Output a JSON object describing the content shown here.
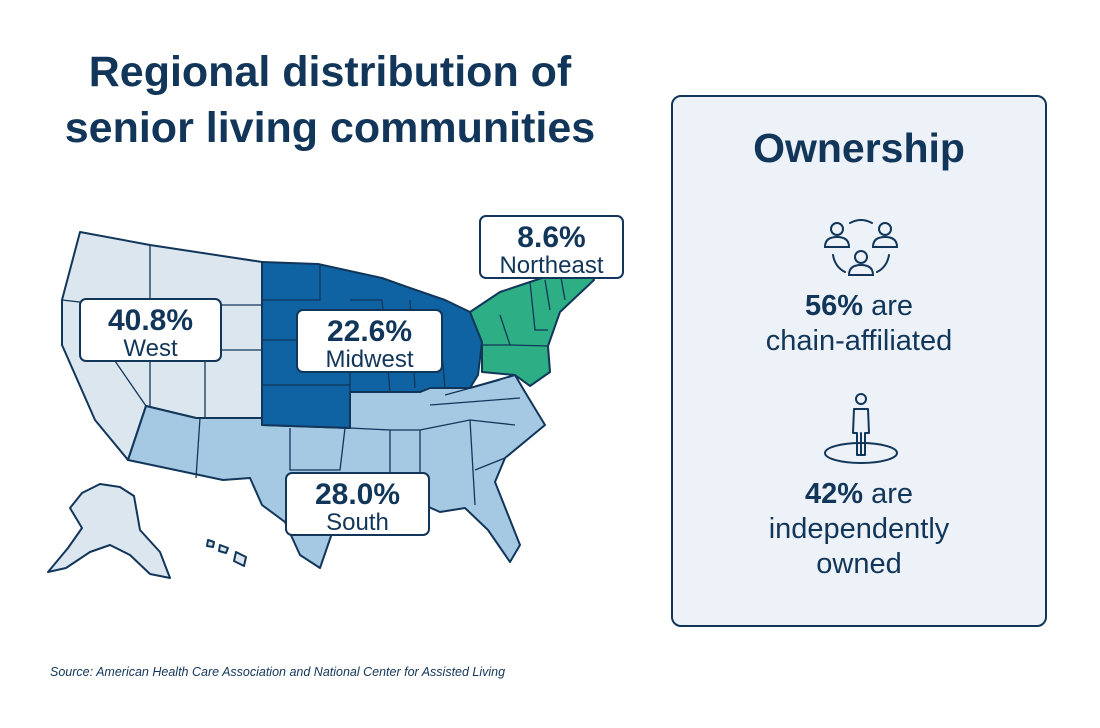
{
  "title": {
    "line1": "Regional distribution of",
    "line2": "senior living communities"
  },
  "map_regions": [
    {
      "name": "West",
      "value": "40.8%",
      "color": "#dbe6ef"
    },
    {
      "name": "Midwest",
      "value": "22.6%",
      "color": "#0f63a3"
    },
    {
      "name": "South",
      "value": "28.0%",
      "color": "#a5c9e3"
    },
    {
      "name": "Northeast",
      "value": "8.6%",
      "color": "#2dae85"
    }
  ],
  "ownership": {
    "title": "Ownership",
    "chain": {
      "icon": "network-people-icon",
      "pct": "56%",
      "text1": "are",
      "text2": "chain-affiliated"
    },
    "independent": {
      "icon": "standing-person-icon",
      "pct": "42%",
      "text1": "are",
      "text2": "independently",
      "text3": "owned"
    }
  },
  "source": "Source: American Health Care Association and National Center for Assisted Living",
  "colors": {
    "navy": "#12365a",
    "panel_bg": "#ecf2f7"
  }
}
